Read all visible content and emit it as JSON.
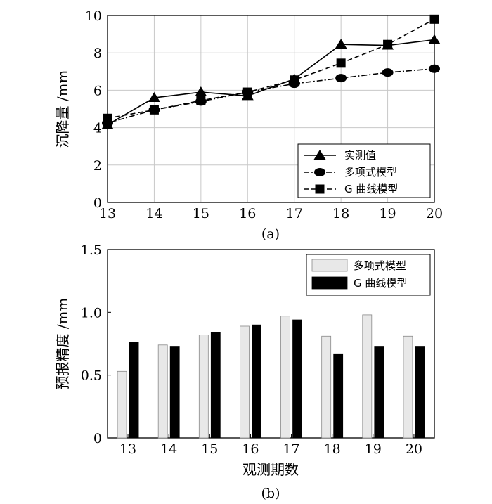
{
  "chart_data": [
    {
      "type": "line",
      "panel_label": "(a)",
      "xlabel": "",
      "ylabel": "沉降量 /mm",
      "xlim": [
        13,
        20
      ],
      "ylim": [
        0,
        10
      ],
      "x": [
        13,
        14,
        15,
        16,
        17,
        18,
        19,
        20
      ],
      "x_tick_labels": [
        "13",
        "14",
        "15",
        "16",
        "17",
        "18",
        "19",
        "20"
      ],
      "y_ticks": [
        0,
        2,
        4,
        6,
        8,
        10
      ],
      "y_tick_labels": [
        "0",
        "2",
        "4",
        "6",
        "8",
        "10"
      ],
      "grid": true,
      "legend_position": "bottom-right",
      "series": [
        {
          "name": "实测值",
          "marker": "triangle",
          "line": "solid",
          "values": [
            4.15,
            5.6,
            5.9,
            5.7,
            6.6,
            8.45,
            8.4,
            8.7
          ]
        },
        {
          "name": "多项式模型",
          "marker": "circle",
          "line": "dashdot",
          "values": [
            4.25,
            4.95,
            5.4,
            5.9,
            6.35,
            6.65,
            6.95,
            7.15
          ]
        },
        {
          "name": "G 曲线模型",
          "marker": "square",
          "line": "dashed",
          "values": [
            4.5,
            4.95,
            5.45,
            5.9,
            6.55,
            7.45,
            8.45,
            9.8
          ]
        }
      ]
    },
    {
      "type": "bar",
      "panel_label": "(b)",
      "xlabel": "观测期数",
      "ylabel": "预报精度 /mm",
      "ylim": [
        0,
        1.5
      ],
      "categories": [
        "13",
        "14",
        "15",
        "16",
        "17",
        "18",
        "19",
        "20"
      ],
      "y_ticks": [
        0,
        0.5,
        1.0,
        1.5
      ],
      "y_tick_labels": [
        "0",
        "0.5",
        "1.0",
        "1.5"
      ],
      "grid": false,
      "legend_position": "top-right",
      "series": [
        {
          "name": "多项式模型",
          "color": "#e8e8e8",
          "values": [
            0.53,
            0.74,
            0.82,
            0.89,
            0.97,
            0.81,
            0.98,
            0.81
          ]
        },
        {
          "name": "G 曲线模型",
          "color": "#000000",
          "values": [
            0.76,
            0.73,
            0.84,
            0.9,
            0.94,
            0.67,
            0.73,
            0.73
          ]
        }
      ]
    }
  ]
}
